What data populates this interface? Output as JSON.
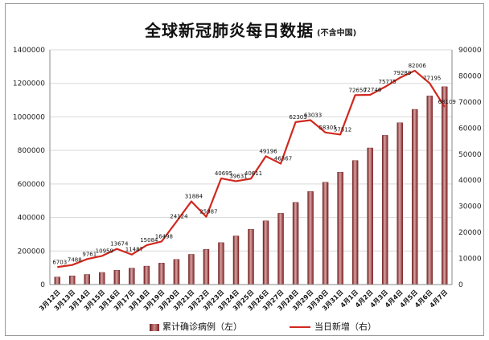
{
  "title": "全球新冠肺炎每日数据",
  "subtitle": "(不含中国)",
  "legend": {
    "bars_label": "累计确诊病例（左）",
    "line_label": "当日新增（右）"
  },
  "colors": {
    "bar": "#b25a5c",
    "line": "#d0281e"
  },
  "chart_data": {
    "type": "bar",
    "title": "全球新冠肺炎每日数据",
    "subtitle": "(不含中国)",
    "categories": [
      "3月12日",
      "3月13日",
      "3月14日",
      "3月15日",
      "3月16日",
      "3月17日",
      "3月18日",
      "3月19日",
      "3月20日",
      "3月21日",
      "3月22日",
      "3月23日",
      "3月24日",
      "3月25日",
      "3月26日",
      "3月27日",
      "3月28日",
      "3月29日",
      "3月30日",
      "3月31日",
      "4月1日",
      "4月2日",
      "4月3日",
      "4月4日",
      "4月5日",
      "4月6日",
      "4月7日"
    ],
    "left_axis": {
      "ylim": [
        0,
        1400000
      ],
      "ticks": [
        "0",
        "200000",
        "400000",
        "600000",
        "800000",
        "1000000",
        "1200000",
        "1400000"
      ]
    },
    "right_axis": {
      "ylim": [
        0,
        90000
      ],
      "ticks": [
        "0",
        "10000",
        "20000",
        "30000",
        "40000",
        "50000",
        "60000",
        "70000",
        "80000",
        "90000"
      ]
    },
    "series": [
      {
        "name": "累计确诊病例（左）",
        "type": "bar",
        "axis": "left",
        "values": [
          45000,
          52000,
          60000,
          72000,
          85000,
          98000,
          110000,
          128000,
          150000,
          180000,
          210000,
          250000,
          290000,
          330000,
          380000,
          425000,
          490000,
          555000,
          610000,
          670000,
          740000,
          815000,
          890000,
          965000,
          1045000,
          1125000,
          1180000
        ]
      },
      {
        "name": "当日新增（右）",
        "type": "line",
        "axis": "right",
        "values": [
          6703,
          7488,
          9761,
          10959,
          13674,
          11487,
          15084,
          16498,
          24124,
          31884,
          25987,
          40695,
          39631,
          40611,
          49196,
          46367,
          62303,
          63033,
          58305,
          57512,
          72650,
          72746,
          75775,
          79289,
          82006,
          77195,
          68109
        ],
        "labels": [
          "6703",
          "7488",
          "9761",
          "10959",
          "13674",
          "11487",
          "15084",
          "16498",
          "24124",
          "31884",
          "25987",
          "40695",
          "39631",
          "40611",
          "49196",
          "46367",
          "62303",
          "63033",
          "58305",
          "57512",
          "72650",
          "72746",
          "75775",
          "79289",
          "82006",
          "77195",
          "68109"
        ]
      }
    ],
    "grid": true,
    "legend_position": "bottom"
  }
}
